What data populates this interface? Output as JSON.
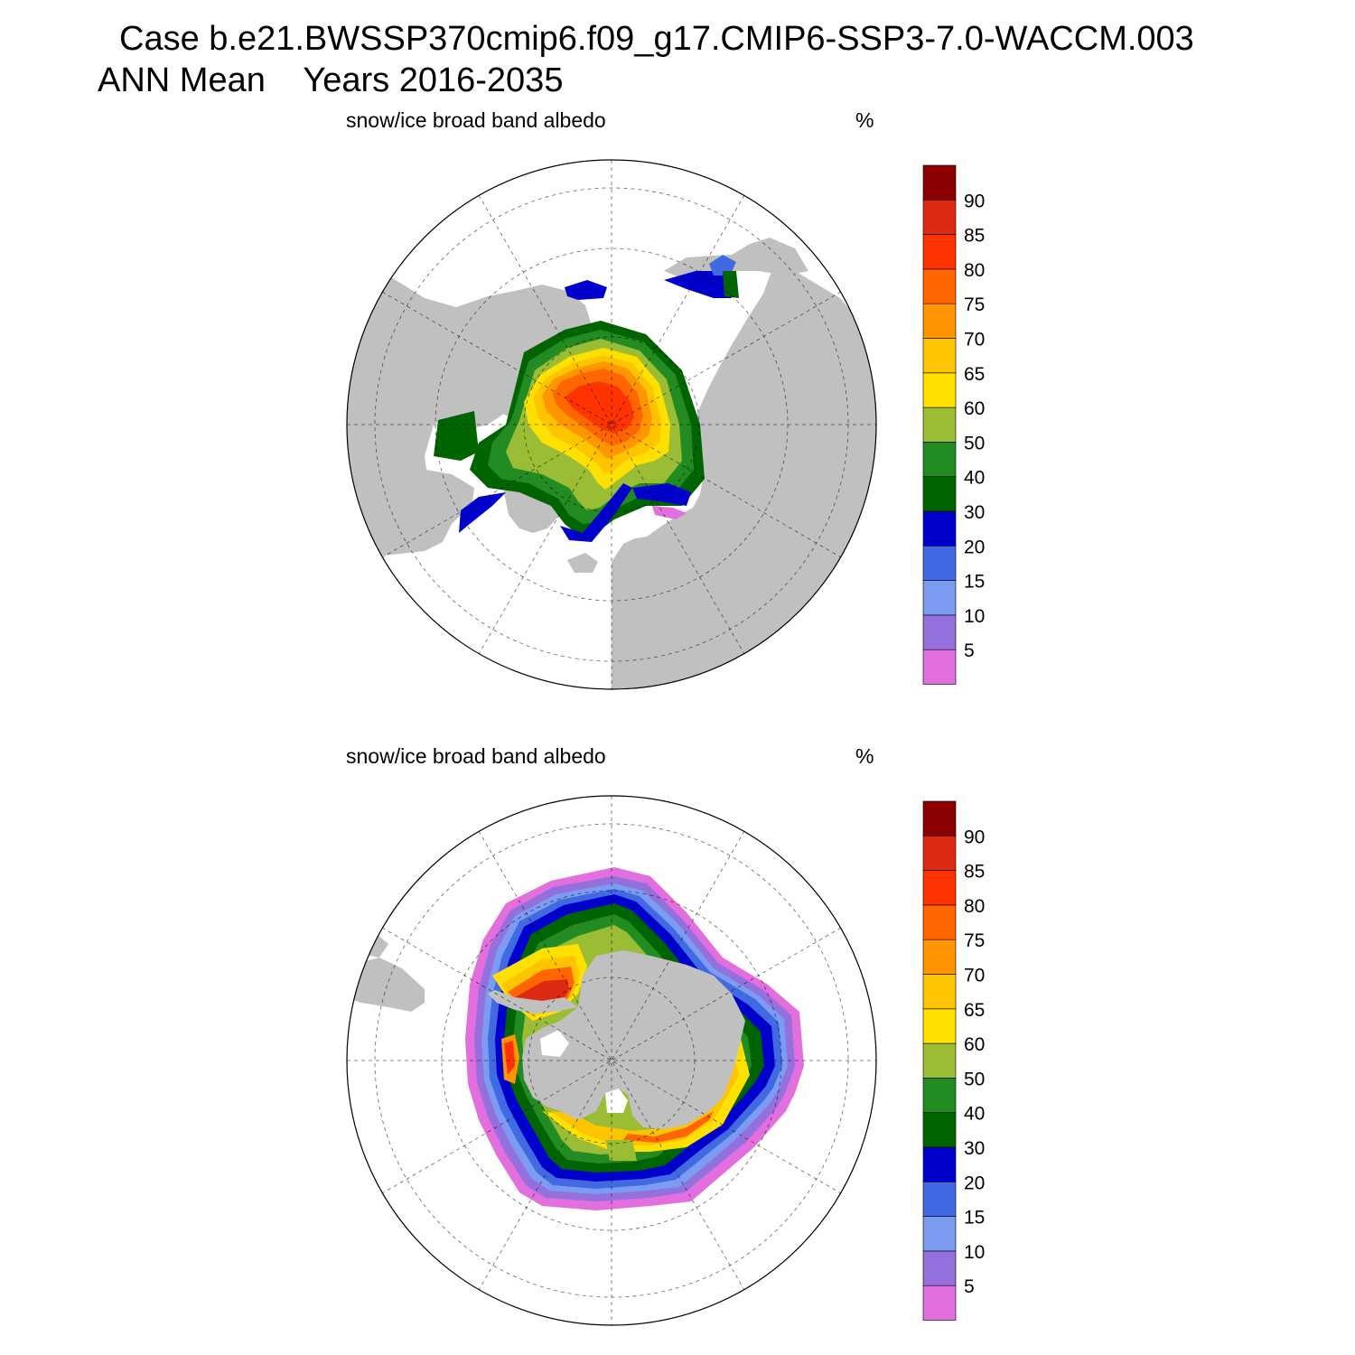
{
  "header": {
    "case_line": "Case b.e21.BWSSP370cmip6.f09_g17.CMIP6-SSP3-7.0-WACCM.003",
    "period_line": "ANN Mean    Years 2016-2035"
  },
  "panels": [
    {
      "id": "north",
      "variable": "snow/ice broad band albedo",
      "units": "%",
      "hemisphere": "north"
    },
    {
      "id": "south",
      "variable": "snow/ice broad band albedo",
      "units": "%",
      "hemisphere": "south"
    }
  ],
  "colorbar": {
    "levels": [
      "5",
      "10",
      "15",
      "20",
      "30",
      "40",
      "50",
      "60",
      "65",
      "70",
      "75",
      "80",
      "85",
      "90"
    ],
    "colors": [
      "#e36fde",
      "#9370db",
      "#7b9cf0",
      "#4169e1",
      "#0000cd",
      "#006400",
      "#228b22",
      "#9abd35",
      "#ffe000",
      "#ffc400",
      "#ff9500",
      "#ff6600",
      "#ff3300",
      "#dd2a10",
      "#8b0000"
    ]
  },
  "style": {
    "land_color": "#c0c0c0",
    "ocean_color": "#ffffff"
  }
}
